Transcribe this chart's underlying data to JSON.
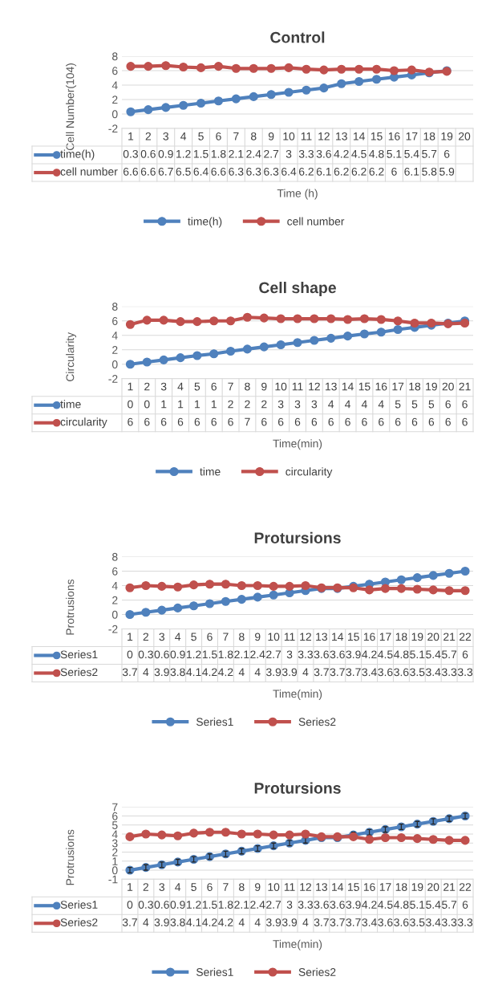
{
  "chart_data": [
    {
      "type": "line",
      "title": "Control",
      "ylabel": "Cell Number(104)",
      "xlabel": "Time (h)",
      "categories": [
        "1",
        "2",
        "3",
        "4",
        "5",
        "6",
        "7",
        "8",
        "9",
        "10",
        "11",
        "12",
        "13",
        "14",
        "15",
        "16",
        "17",
        "18",
        "19",
        "20"
      ],
      "ylim": [
        -2,
        8
      ],
      "yticks": [
        -2,
        0,
        2,
        4,
        6,
        8
      ],
      "grid": "y",
      "legend": "bottom",
      "marker": "circle",
      "line_style": "solid",
      "series": [
        {
          "name": "time(h)",
          "color": "#4f81bd",
          "values": [
            0.3,
            0.6,
            0.9,
            1.2,
            1.5,
            1.8,
            2.1,
            2.4,
            2.7,
            3,
            3.3,
            3.6,
            4.2,
            4.5,
            4.8,
            5.1,
            5.4,
            5.7,
            6,
            null
          ],
          "value_labels": [
            "0.3",
            "0.6",
            "0.9",
            "1.2",
            "1.5",
            "1.8",
            "2.1",
            "2.4",
            "2.7",
            "3",
            "3.3",
            "3.6",
            "4.2",
            "4.5",
            "4.8",
            "5.1",
            "5.4",
            "5.7",
            "6",
            null
          ]
        },
        {
          "name": "cell number",
          "color": "#c0504d",
          "values": [
            6.6,
            6.6,
            6.7,
            6.5,
            6.4,
            6.6,
            6.3,
            6.3,
            6.3,
            6.4,
            6.2,
            6.1,
            6.2,
            6.2,
            6.2,
            6,
            6.1,
            5.8,
            5.9,
            null
          ],
          "value_labels": [
            "6.6",
            "6.6",
            "6.7",
            "6.5",
            "6.4",
            "6.6",
            "6.3",
            "6.3",
            "6.3",
            "6.4",
            "6.2",
            "6.1",
            "6.2",
            "6.2",
            "6.2",
            "6",
            "6.1",
            "5.8",
            "5.9",
            null
          ]
        }
      ]
    },
    {
      "type": "line",
      "title": "Cell shape",
      "ylabel": "Circularity",
      "xlabel": "Time(min)",
      "categories": [
        "1",
        "2",
        "3",
        "4",
        "5",
        "6",
        "7",
        "8",
        "9",
        "10",
        "11",
        "12",
        "13",
        "14",
        "15",
        "16",
        "17",
        "18",
        "19",
        "20",
        "21"
      ],
      "ylim": [
        -2,
        8
      ],
      "yticks": [
        -2,
        0,
        2,
        4,
        6,
        8
      ],
      "grid": "y",
      "legend": "bottom",
      "marker": "circle",
      "line_style": "solid",
      "series": [
        {
          "name": "time",
          "color": "#4f81bd",
          "values": [
            0,
            0.3,
            0.6,
            0.9,
            1.2,
            1.45,
            1.8,
            2.1,
            2.4,
            2.7,
            3,
            3.3,
            3.6,
            3.9,
            4.2,
            4.45,
            4.8,
            5.1,
            5.4,
            5.7,
            6
          ],
          "value_labels": [
            "0",
            "0",
            "1",
            "1",
            "1",
            "1",
            "2",
            "2",
            "2",
            "3",
            "3",
            "3",
            "4",
            "4",
            "4",
            "4",
            "5",
            "5",
            "5",
            "6",
            "6"
          ]
        },
        {
          "name": "circularity",
          "color": "#c0504d",
          "values": [
            5.5,
            6.1,
            6.1,
            5.9,
            5.9,
            6,
            6,
            6.5,
            6.4,
            6.3,
            6.3,
            6.3,
            6.3,
            6.2,
            6.3,
            6.2,
            6,
            5.7,
            5.7,
            5.6,
            5.7
          ],
          "value_labels": [
            "6",
            "6",
            "6",
            "6",
            "6",
            "6",
            "6",
            "7",
            "6",
            "6",
            "6",
            "6",
            "6",
            "6",
            "6",
            "6",
            "6",
            "6",
            "6",
            "6",
            "6"
          ]
        }
      ]
    },
    {
      "type": "line",
      "title": "Protursions",
      "ylabel": "Protrusions",
      "xlabel": "Time(min)",
      "categories": [
        "1",
        "2",
        "3",
        "4",
        "5",
        "6",
        "7",
        "8",
        "9",
        "10",
        "11",
        "12",
        "13",
        "14",
        "15",
        "16",
        "17",
        "18",
        "19",
        "20",
        "21",
        "22"
      ],
      "ylim": [
        -2,
        8
      ],
      "yticks": [
        -2,
        0,
        2,
        4,
        6,
        8
      ],
      "grid": "y",
      "legend": "bottom",
      "marker": "circle",
      "line_style": "solid",
      "series": [
        {
          "name": "Series1",
          "color": "#4f81bd",
          "values": [
            0,
            0.3,
            0.6,
            0.9,
            1.2,
            1.5,
            1.8,
            2.1,
            2.4,
            2.7,
            3,
            3.3,
            3.6,
            3.6,
            3.9,
            4.2,
            4.5,
            4.8,
            5.1,
            5.4,
            5.7,
            6
          ],
          "value_labels": [
            "0",
            "0.3",
            "0.6",
            "0.9",
            "1.2",
            "1.5",
            "1.8",
            "2.1",
            "2.4",
            "2.7",
            "3",
            "3.3",
            "3.6",
            "3.6",
            "3.9",
            "4.2",
            "4.5",
            "4.8",
            "5.1",
            "5.4",
            "5.7",
            "6"
          ]
        },
        {
          "name": "Series2",
          "color": "#c0504d",
          "values": [
            3.7,
            4,
            3.9,
            3.8,
            4.1,
            4.2,
            4.2,
            4,
            4,
            3.9,
            3.9,
            4,
            3.7,
            3.7,
            3.7,
            3.4,
            3.6,
            3.6,
            3.5,
            3.4,
            3.3,
            3.3
          ],
          "value_labels": [
            "3.7",
            "4",
            "3.9",
            "3.8",
            "4.1",
            "4.2",
            "4.2",
            "4",
            "4",
            "3.9",
            "3.9",
            "4",
            "3.7",
            "3.7",
            "3.7",
            "3.4",
            "3.6",
            "3.6",
            "3.5",
            "3.4",
            "3.3",
            "3.3"
          ]
        }
      ]
    },
    {
      "type": "line",
      "title": "Protursions",
      "ylabel": "Protrusions",
      "xlabel": "Time(min)",
      "categories": [
        "1",
        "2",
        "3",
        "4",
        "5",
        "6",
        "7",
        "8",
        "9",
        "10",
        "11",
        "12",
        "13",
        "14",
        "15",
        "16",
        "17",
        "18",
        "19",
        "20",
        "21",
        "22"
      ],
      "ylim": [
        -1,
        7
      ],
      "yticks": [
        -1,
        0,
        1,
        2,
        3,
        4,
        5,
        6,
        7
      ],
      "grid": "y",
      "legend": "bottom",
      "marker": "circle",
      "line_style": "solid",
      "series": [
        {
          "name": "Series1",
          "color": "#4f81bd",
          "values": [
            0,
            0.3,
            0.6,
            0.9,
            1.2,
            1.5,
            1.8,
            2.1,
            2.4,
            2.7,
            3,
            3.3,
            3.6,
            3.6,
            3.9,
            4.2,
            4.5,
            4.8,
            5.1,
            5.4,
            5.7,
            6
          ],
          "errors": [
            0.3,
            0.3,
            0.3,
            0.3,
            0.3,
            0.3,
            0.3,
            0.3,
            0.3,
            0.3,
            0.3,
            0.3,
            0.3,
            0.3,
            0.3,
            0.3,
            0.3,
            0.3,
            0.3,
            0.3,
            0.3,
            0.3
          ],
          "value_labels": [
            "0",
            "0.3",
            "0.6",
            "0.9",
            "1.2",
            "1.5",
            "1.8",
            "2.1",
            "2.4",
            "2.7",
            "3",
            "3.3",
            "3.6",
            "3.6",
            "3.9",
            "4.2",
            "4.5",
            "4.8",
            "5.1",
            "5.4",
            "5.7",
            "6"
          ]
        },
        {
          "name": "Series2",
          "color": "#c0504d",
          "values": [
            3.7,
            4,
            3.9,
            3.8,
            4.1,
            4.2,
            4.2,
            4,
            4,
            3.9,
            3.9,
            4,
            3.7,
            3.7,
            3.7,
            3.4,
            3.6,
            3.6,
            3.5,
            3.4,
            3.3,
            3.3
          ],
          "value_labels": [
            "3.7",
            "4",
            "3.9",
            "3.8",
            "4.1",
            "4.2",
            "4.2",
            "4",
            "4",
            "3.9",
            "3.9",
            "4",
            "3.7",
            "3.7",
            "3.7",
            "3.4",
            "3.6",
            "3.6",
            "3.5",
            "3.4",
            "3.3",
            "3.3"
          ]
        }
      ]
    }
  ]
}
